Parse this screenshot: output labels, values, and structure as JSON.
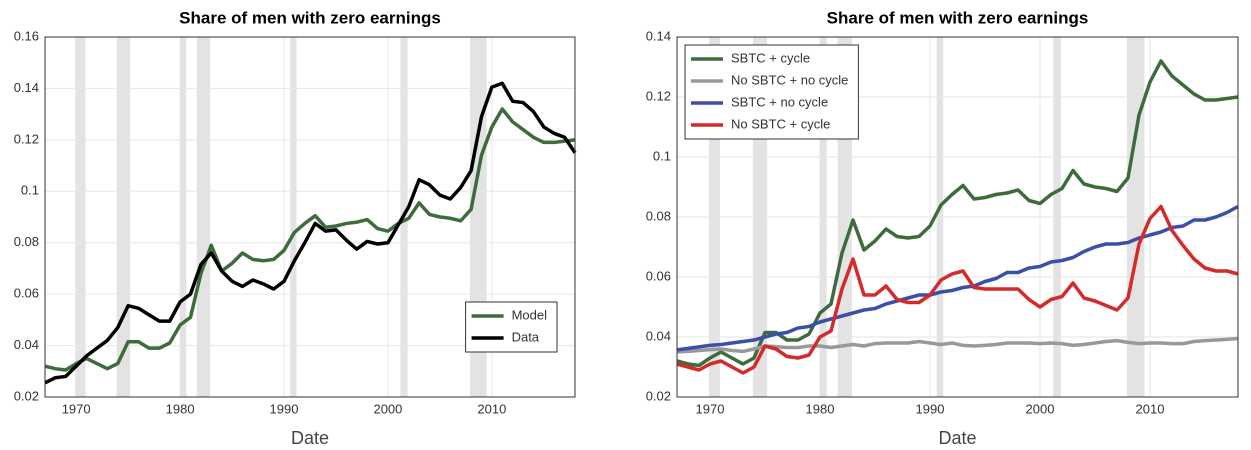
{
  "chart_data": [
    {
      "type": "line",
      "title": "Share of men with zero earnings",
      "xlabel": "Date",
      "x": [
        1967,
        1968,
        1969,
        1970,
        1971,
        1972,
        1973,
        1974,
        1975,
        1976,
        1977,
        1978,
        1979,
        1980,
        1981,
        1982,
        1983,
        1984,
        1985,
        1986,
        1987,
        1988,
        1989,
        1990,
        1991,
        1992,
        1993,
        1994,
        1995,
        1996,
        1997,
        1998,
        1999,
        2000,
        2001,
        2002,
        2003,
        2004,
        2005,
        2006,
        2007,
        2008,
        2009,
        2010,
        2011,
        2012,
        2013,
        2014,
        2015,
        2016,
        2017,
        2018
      ],
      "series": [
        {
          "name": "Model",
          "color": "#3d6b3d",
          "values": [
            0.032,
            0.031,
            0.0305,
            0.033,
            0.035,
            0.033,
            0.031,
            0.033,
            0.0415,
            0.0415,
            0.039,
            0.039,
            0.041,
            0.048,
            0.051,
            0.068,
            0.079,
            0.069,
            0.072,
            0.076,
            0.0735,
            0.073,
            0.0735,
            0.077,
            0.084,
            0.0875,
            0.0905,
            0.086,
            0.0865,
            0.0875,
            0.088,
            0.089,
            0.0855,
            0.0845,
            0.0875,
            0.0895,
            0.0955,
            0.091,
            0.09,
            0.0895,
            0.0885,
            0.093,
            0.114,
            0.125,
            0.132,
            0.127,
            0.124,
            0.121,
            0.119,
            0.119,
            0.1195,
            0.12
          ]
        },
        {
          "name": "Data",
          "color": "#000000",
          "values": [
            0.0255,
            0.0275,
            0.028,
            0.032,
            0.036,
            0.039,
            0.042,
            0.047,
            0.0555,
            0.0545,
            0.052,
            0.0495,
            0.0495,
            0.057,
            0.06,
            0.0715,
            0.076,
            0.069,
            0.065,
            0.063,
            0.0655,
            0.064,
            0.062,
            0.065,
            0.073,
            0.08,
            0.0875,
            0.0845,
            0.085,
            0.081,
            0.0775,
            0.0805,
            0.0795,
            0.08,
            0.087,
            0.094,
            0.1045,
            0.1025,
            0.0985,
            0.097,
            0.1015,
            0.108,
            0.129,
            0.1405,
            0.142,
            0.135,
            0.1345,
            0.131,
            0.125,
            0.1225,
            0.121,
            0.115
          ]
        }
      ],
      "shaded_periods": [
        [
          1969.9,
          1970.9
        ],
        [
          1973.9,
          1975.2
        ],
        [
          1980.0,
          1980.6
        ],
        [
          1981.6,
          1982.9
        ],
        [
          1990.6,
          1991.2
        ],
        [
          2001.2,
          2001.9
        ],
        [
          2007.9,
          2009.5
        ]
      ],
      "shade_color": "#e3e3e3",
      "xlim": [
        1967,
        2018
      ],
      "xticks": [
        1970,
        1980,
        1990,
        2000,
        2010
      ],
      "ylim": [
        0.02,
        0.16
      ],
      "yticks": [
        0.02,
        0.04,
        0.06,
        0.08,
        0.1,
        0.12,
        0.14,
        0.16
      ],
      "grid": true,
      "legend": "lower right"
    },
    {
      "type": "line",
      "title": "Share of men with zero earnings",
      "xlabel": "Date",
      "x": [
        1967,
        1968,
        1969,
        1970,
        1971,
        1972,
        1973,
        1974,
        1975,
        1976,
        1977,
        1978,
        1979,
        1980,
        1981,
        1982,
        1983,
        1984,
        1985,
        1986,
        1987,
        1988,
        1989,
        1990,
        1991,
        1992,
        1993,
        1994,
        1995,
        1996,
        1997,
        1998,
        1999,
        2000,
        2001,
        2002,
        2003,
        2004,
        2005,
        2006,
        2007,
        2008,
        2009,
        2010,
        2011,
        2012,
        2013,
        2014,
        2015,
        2016,
        2017,
        2018
      ],
      "series": [
        {
          "name": "SBTC + cycle",
          "color": "#3d6b3d",
          "values": [
            0.032,
            0.031,
            0.0305,
            0.033,
            0.035,
            0.033,
            0.031,
            0.033,
            0.0415,
            0.0415,
            0.039,
            0.039,
            0.041,
            0.048,
            0.051,
            0.068,
            0.079,
            0.069,
            0.072,
            0.076,
            0.0735,
            0.073,
            0.0735,
            0.077,
            0.084,
            0.0875,
            0.0905,
            0.086,
            0.0865,
            0.0875,
            0.088,
            0.089,
            0.0855,
            0.0845,
            0.0875,
            0.0895,
            0.0955,
            0.091,
            0.09,
            0.0895,
            0.0885,
            0.093,
            0.114,
            0.125,
            0.132,
            0.127,
            0.124,
            0.121,
            0.119,
            0.119,
            0.1195,
            0.12
          ]
        },
        {
          "name": "No SBTC + no cycle",
          "color": "#999999",
          "values": [
            0.035,
            0.0352,
            0.0355,
            0.0358,
            0.036,
            0.0355,
            0.0352,
            0.036,
            0.037,
            0.0368,
            0.0365,
            0.0365,
            0.037,
            0.037,
            0.0365,
            0.037,
            0.0375,
            0.037,
            0.0378,
            0.038,
            0.038,
            0.038,
            0.0385,
            0.038,
            0.0375,
            0.038,
            0.0372,
            0.037,
            0.0372,
            0.0375,
            0.038,
            0.038,
            0.038,
            0.0378,
            0.038,
            0.0378,
            0.0372,
            0.0375,
            0.038,
            0.0385,
            0.0388,
            0.0382,
            0.0378,
            0.038,
            0.038,
            0.0378,
            0.0378,
            0.0385,
            0.0388,
            0.039,
            0.0392,
            0.0395
          ]
        },
        {
          "name": "SBTC + no cycle",
          "color": "#3b4fa8",
          "values": [
            0.0357,
            0.0362,
            0.0367,
            0.0372,
            0.0375,
            0.038,
            0.0385,
            0.039,
            0.04,
            0.041,
            0.0415,
            0.043,
            0.0435,
            0.045,
            0.046,
            0.047,
            0.048,
            0.049,
            0.0495,
            0.051,
            0.052,
            0.053,
            0.054,
            0.054,
            0.055,
            0.0555,
            0.0565,
            0.057,
            0.0585,
            0.0595,
            0.0615,
            0.0615,
            0.063,
            0.0635,
            0.065,
            0.0655,
            0.0665,
            0.0685,
            0.07,
            0.071,
            0.071,
            0.0715,
            0.073,
            0.074,
            0.075,
            0.0765,
            0.077,
            0.079,
            0.079,
            0.08,
            0.0815,
            0.0835
          ]
        },
        {
          "name": "No SBTC + cycle",
          "color": "#d42a2a",
          "values": [
            0.031,
            0.03,
            0.029,
            0.031,
            0.032,
            0.03,
            0.028,
            0.03,
            0.037,
            0.036,
            0.0335,
            0.033,
            0.034,
            0.04,
            0.042,
            0.056,
            0.066,
            0.054,
            0.054,
            0.057,
            0.0525,
            0.0515,
            0.0515,
            0.054,
            0.059,
            0.061,
            0.062,
            0.0565,
            0.056,
            0.056,
            0.056,
            0.056,
            0.0525,
            0.05,
            0.0525,
            0.0535,
            0.058,
            0.053,
            0.052,
            0.0505,
            0.049,
            0.053,
            0.071,
            0.0795,
            0.0835,
            0.0755,
            0.0705,
            0.066,
            0.063,
            0.062,
            0.062,
            0.061
          ]
        }
      ],
      "shaded_periods": [
        [
          1969.9,
          1970.9
        ],
        [
          1973.9,
          1975.2
        ],
        [
          1980.0,
          1980.6
        ],
        [
          1981.6,
          1982.9
        ],
        [
          1990.6,
          1991.2
        ],
        [
          2001.2,
          2001.9
        ],
        [
          2007.9,
          2009.5
        ]
      ],
      "shade_color": "#e3e3e3",
      "xlim": [
        1967,
        2018
      ],
      "xticks": [
        1970,
        1980,
        1990,
        2000,
        2010
      ],
      "ylim": [
        0.02,
        0.14
      ],
      "yticks": [
        0.02,
        0.04,
        0.06,
        0.08,
        0.1,
        0.12,
        0.14
      ],
      "grid": true,
      "legend": "upper left"
    }
  ]
}
